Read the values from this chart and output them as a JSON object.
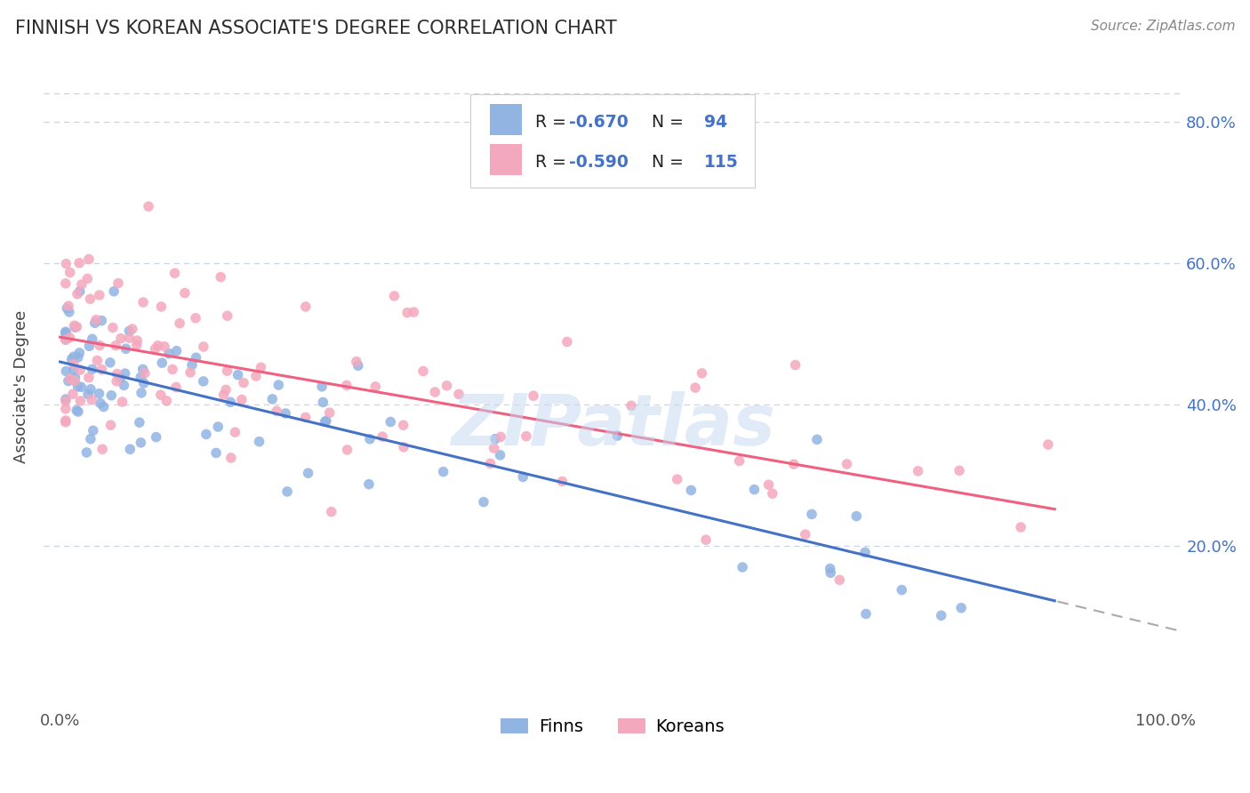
{
  "title": "FINNISH VS KOREAN ASSOCIATE'S DEGREE CORRELATION CHART",
  "source_text": "Source: ZipAtlas.com",
  "ylabel": "Associate's Degree",
  "finn_color": "#92b4e3",
  "korean_color": "#f4a8be",
  "finn_line_color": "#4472c4",
  "korean_line_color": "#f06080",
  "finn_R": -0.67,
  "finn_N": 94,
  "korean_R": -0.59,
  "korean_N": 115,
  "watermark": "ZIPatlas",
  "background_color": "#ffffff",
  "grid_color": "#c8d4e8"
}
